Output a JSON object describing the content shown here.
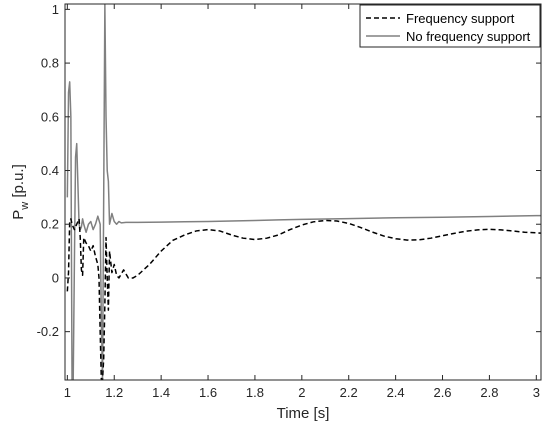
{
  "chart_data": {
    "type": "line",
    "title": "",
    "xlabel": "Time [s]",
    "ylabel": {
      "main": "P",
      "subscript": "w",
      "unit": " [p.u.]"
    },
    "xlim": [
      0.99,
      3.02
    ],
    "ylim": [
      -0.38,
      1.02
    ],
    "xticks": [
      1,
      1.2,
      1.4,
      1.6,
      1.8,
      2,
      2.2,
      2.4,
      2.6,
      2.8,
      3
    ],
    "xtick_labels": [
      "1",
      "1.2",
      "1.4",
      "1.6",
      "1.8",
      "2",
      "2.2",
      "2.4",
      "2.6",
      "2.8",
      "3"
    ],
    "yticks": [
      -0.2,
      0,
      0.2,
      0.4,
      0.6,
      0.8,
      1
    ],
    "ytick_labels": [
      "-0.2",
      "0",
      "0.2",
      "0.4",
      "0.6",
      "0.8",
      "1"
    ],
    "grid": false,
    "legend_position": "top-right",
    "series": [
      {
        "name": "Frequency support",
        "style": "dashed",
        "color": "#000000",
        "x": [
          1.0,
          1.005,
          1.01,
          1.015,
          1.02,
          1.03,
          1.04,
          1.05,
          1.055,
          1.06,
          1.065,
          1.07,
          1.075,
          1.08,
          1.09,
          1.1,
          1.11,
          1.12,
          1.13,
          1.135,
          1.14,
          1.145,
          1.15,
          1.155,
          1.16,
          1.165,
          1.17,
          1.175,
          1.18,
          1.19,
          1.2,
          1.21,
          1.22,
          1.24,
          1.26,
          1.28,
          1.3,
          1.35,
          1.4,
          1.45,
          1.5,
          1.55,
          1.6,
          1.65,
          1.7,
          1.75,
          1.8,
          1.85,
          1.9,
          1.95,
          2.0,
          2.05,
          2.1,
          2.15,
          2.2,
          2.25,
          2.3,
          2.35,
          2.4,
          2.45,
          2.5,
          2.55,
          2.6,
          2.65,
          2.7,
          2.75,
          2.8,
          2.85,
          2.9,
          2.95,
          3.0,
          3.02
        ],
        "y": [
          -0.05,
          0.02,
          0.21,
          0.22,
          0.2,
          0.18,
          0.2,
          0.22,
          0.15,
          0.03,
          0.01,
          0.15,
          0.14,
          0.13,
          0.12,
          0.1,
          0.12,
          0.08,
          0.05,
          0.0,
          -0.2,
          -0.38,
          -0.38,
          -0.3,
          -0.1,
          0.15,
          0.0,
          -0.12,
          0.1,
          0.02,
          0.05,
          0.01,
          0.0,
          0.03,
          0.0,
          0.0,
          0.01,
          0.05,
          0.1,
          0.14,
          0.16,
          0.175,
          0.18,
          0.175,
          0.16,
          0.148,
          0.143,
          0.148,
          0.16,
          0.18,
          0.197,
          0.209,
          0.214,
          0.212,
          0.203,
          0.188,
          0.171,
          0.156,
          0.146,
          0.141,
          0.142,
          0.148,
          0.157,
          0.166,
          0.174,
          0.179,
          0.181,
          0.179,
          0.175,
          0.17,
          0.168,
          0.167
        ]
      },
      {
        "name": "No frequency support",
        "style": "solid",
        "color": "#808080",
        "x": [
          1.0,
          1.005,
          1.01,
          1.015,
          1.02,
          1.025,
          1.03,
          1.035,
          1.04,
          1.045,
          1.05,
          1.055,
          1.06,
          1.065,
          1.07,
          1.08,
          1.09,
          1.1,
          1.11,
          1.12,
          1.13,
          1.14,
          1.145,
          1.15,
          1.155,
          1.16,
          1.165,
          1.17,
          1.175,
          1.18,
          1.19,
          1.2,
          1.21,
          1.22,
          1.23,
          1.25,
          1.3,
          1.4,
          1.5,
          1.6,
          1.7,
          1.8,
          1.9,
          2.0,
          2.2,
          2.4,
          2.6,
          2.8,
          3.0,
          3.02
        ],
        "y": [
          0.3,
          0.69,
          0.73,
          0.6,
          -0.38,
          -0.38,
          0.05,
          0.45,
          0.5,
          0.35,
          0.2,
          0.18,
          0.19,
          0.22,
          0.2,
          0.17,
          0.2,
          0.21,
          0.18,
          0.2,
          0.23,
          0.2,
          -0.15,
          -0.38,
          0.3,
          1.02,
          0.6,
          0.4,
          0.36,
          0.2,
          0.24,
          0.21,
          0.2,
          0.21,
          0.205,
          0.207,
          0.207,
          0.208,
          0.209,
          0.21,
          0.212,
          0.214,
          0.216,
          0.218,
          0.221,
          0.224,
          0.226,
          0.229,
          0.232,
          0.232
        ]
      }
    ]
  }
}
